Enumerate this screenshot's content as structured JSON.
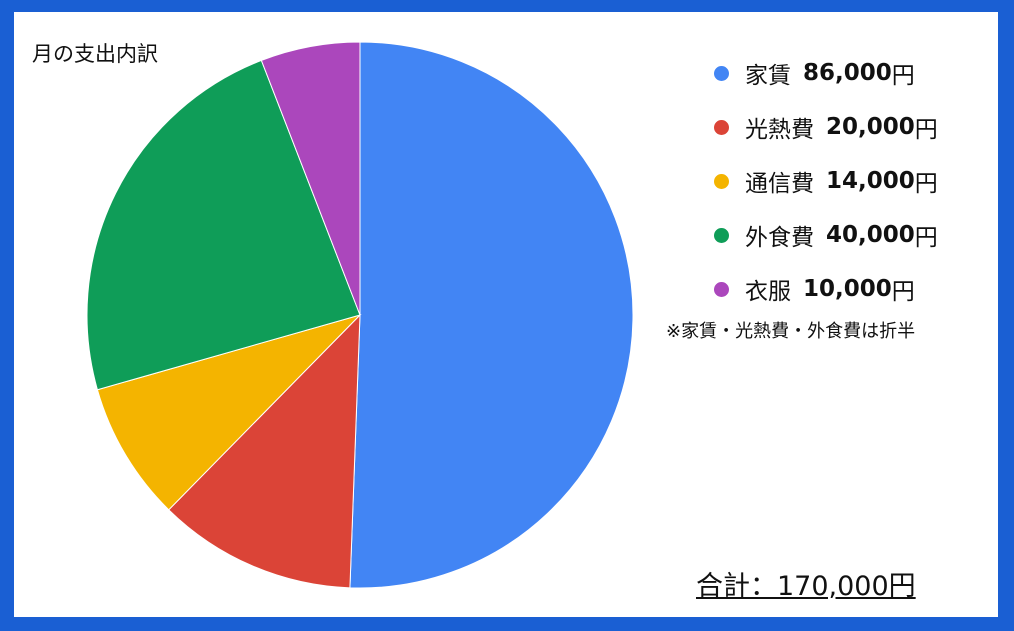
{
  "chart_data": {
    "type": "pie",
    "title": "月の支出内訳",
    "slices": [
      {
        "label": "家賃",
        "value": 86000,
        "value_text": "86,000",
        "color": "#4285f4"
      },
      {
        "label": "光熱費",
        "value": 20000,
        "value_text": "20,000",
        "color": "#db4437"
      },
      {
        "label": "通信費",
        "value": 14000,
        "value_text": "14,000",
        "color": "#f4b400"
      },
      {
        "label": "外食費",
        "value": 40000,
        "value_text": "40,000",
        "color": "#0f9d58"
      },
      {
        "label": "衣服",
        "value": 10000,
        "value_text": "10,000",
        "color": "#ab47bc"
      }
    ],
    "currency": "円",
    "legend": "right",
    "note": "※家賃・光熱費・外食費は折半",
    "total": "合計：170,000円"
  }
}
